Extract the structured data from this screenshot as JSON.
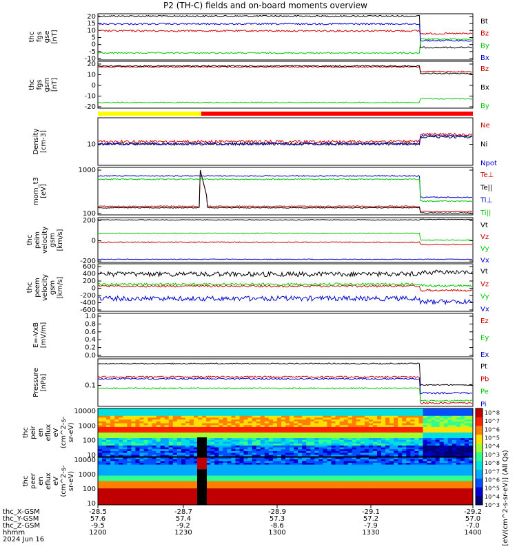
{
  "chart_data": [
    {
      "type": "line",
      "title": "P2 (TH-C) fields and on-board moments overview",
      "panels": [
        {
          "id": "fgs-gse",
          "ylabel": [
            "thc",
            "fgs",
            "gse",
            "[nT]"
          ],
          "ylim": [
            -15,
            20
          ],
          "yticks": [
            "20",
            "15",
            "10",
            "5",
            "0",
            "-5",
            "-10"
          ],
          "series": [
            {
              "name": "Bt",
              "color": "#000000",
              "level": 18,
              "after": 6,
              "noise": 0.6
            },
            {
              "name": "Bz",
              "color": "#d00000",
              "level": 6,
              "after": 5,
              "noise": 0.8
            },
            {
              "name": "By",
              "color": "#00c800",
              "level": -8,
              "after": 0,
              "noise": 0.7
            },
            {
              "name": "Bx",
              "color": "#0000d0",
              "level": 12,
              "after": 3,
              "noise": 0.8
            }
          ]
        },
        {
          "id": "fgs-gsm",
          "ylabel": [
            "thc",
            "fgs",
            "gsm",
            "[nT]"
          ],
          "ylim": [
            -28,
            28
          ],
          "yticks": [
            "20",
            "10",
            "0",
            "-10",
            "-20"
          ],
          "series": [
            {
              "name": "Bz",
              "color": "#d00000",
              "level": 20,
              "after": 17,
              "noise": 0.8
            },
            {
              "name": "Bx",
              "color": "#000000",
              "level": 22,
              "after": 16,
              "noise": 0.7
            },
            {
              "name": "By",
              "color": "#00c800",
              "level": -23,
              "after": -14,
              "noise": 0.6
            }
          ]
        },
        {
          "id": "density",
          "ylabel": [
            "Density",
            "[cm-3]"
          ],
          "yticks": [
            "10"
          ],
          "series": [
            {
              "name": "Ne",
              "color": "#d00000"
            },
            {
              "name": "Ni",
              "color": "#000000"
            },
            {
              "name": "Npot",
              "color": "#0000d0"
            }
          ]
        },
        {
          "id": "temperature",
          "ylabel": [
            "mom_t3",
            "[eV]"
          ],
          "yticks": [
            "1000",
            "100"
          ],
          "series": [
            {
              "name": "Te⊥",
              "color": "#d00000"
            },
            {
              "name": "Te||",
              "color": "#000000"
            },
            {
              "name": "Ti⊥",
              "color": "#0000d0"
            },
            {
              "name": "Ti||",
              "color": "#00c800"
            }
          ]
        },
        {
          "id": "peim-velocity",
          "ylabel": [
            "thc",
            "peim",
            "velocity",
            "gsm",
            "[km/s]"
          ],
          "yticks": [
            "200",
            "0",
            "-200"
          ],
          "series": [
            {
              "name": "Vt",
              "color": "#000000"
            },
            {
              "name": "Vz",
              "color": "#d00000"
            },
            {
              "name": "Vy",
              "color": "#00c800"
            },
            {
              "name": "Vx",
              "color": "#0000d0"
            }
          ]
        },
        {
          "id": "peem-velocity",
          "ylabel": [
            "thc",
            "peem",
            "velocity",
            "gsm",
            "[km/s]"
          ],
          "yticks": [
            "600",
            "400",
            "200",
            "0",
            "-200",
            "-400",
            "-600"
          ],
          "series": [
            {
              "name": "Vt",
              "color": "#000000"
            },
            {
              "name": "Vz",
              "color": "#d00000"
            },
            {
              "name": "Vy",
              "color": "#00c800"
            },
            {
              "name": "Vx",
              "color": "#0000d0"
            }
          ]
        },
        {
          "id": "e-field",
          "ylabel": [
            "E=-VxB",
            "[mV/m]"
          ],
          "yticks": [
            "1.0",
            "0.8",
            "0.6",
            "0.4",
            "0.2",
            "0.0"
          ],
          "series": [
            {
              "name": "Ez",
              "color": "#d00000"
            },
            {
              "name": "Ey",
              "color": "#00c800"
            },
            {
              "name": "Ex",
              "color": "#0000d0"
            }
          ]
        },
        {
          "id": "pressure",
          "ylabel": [
            "Pressure",
            "[nPa]"
          ],
          "yticks": [
            "0.1"
          ],
          "series": [
            {
              "name": "Pt",
              "color": "#000000"
            },
            {
              "name": "Pb",
              "color": "#d00000"
            },
            {
              "name": "Pe",
              "color": "#00c800"
            },
            {
              "name": "Pi",
              "color": "#0000d0"
            }
          ]
        },
        {
          "id": "peir-eflux",
          "type": "heatmap",
          "ylabel": [
            "thc",
            "peir",
            "en",
            "eflux",
            "eV",
            "(cm^2-s-",
            "sr-eV)"
          ],
          "yticks": [
            "10000",
            "1000",
            "100",
            "10"
          ]
        },
        {
          "id": "peer-eflux",
          "type": "heatmap",
          "ylabel": [
            "thc",
            "peer",
            "en",
            "eflux",
            "eV",
            "(cm^2-s-",
            "sr-eV)"
          ],
          "yticks": [
            "10000",
            "1000",
            "100",
            "10"
          ]
        }
      ],
      "colorbar": {
        "label": "[eV/(cm^2-s-sr-eV)] (All Qs)",
        "ticks": [
          "10^8",
          "10^7",
          "10^6",
          "10^5",
          "10^4",
          "10^3",
          "10^8",
          "10^7",
          "10^6",
          "10^5",
          "10^4",
          "10^3"
        ]
      },
      "x_axis": {
        "rows": [
          {
            "label": "thc_X-GSM",
            "values": [
              "-28.5",
              "-28.7",
              "-28.9",
              "-29.1",
              "-29.2"
            ]
          },
          {
            "label": "thc_Y-GSM",
            "values": [
              "57.6",
              "57.4",
              "57.3",
              "57.2",
              "57.0"
            ]
          },
          {
            "label": "thc_Z-GSM",
            "values": [
              "-9.5",
              "-9.2",
              "-8.6",
              "-7.9",
              "-7.0"
            ]
          },
          {
            "label": "hhmm",
            "values": [
              "1200",
              "1230",
              "1300",
              "1330",
              "1400"
            ]
          }
        ],
        "date": "2024 Jun 16"
      }
    }
  ]
}
